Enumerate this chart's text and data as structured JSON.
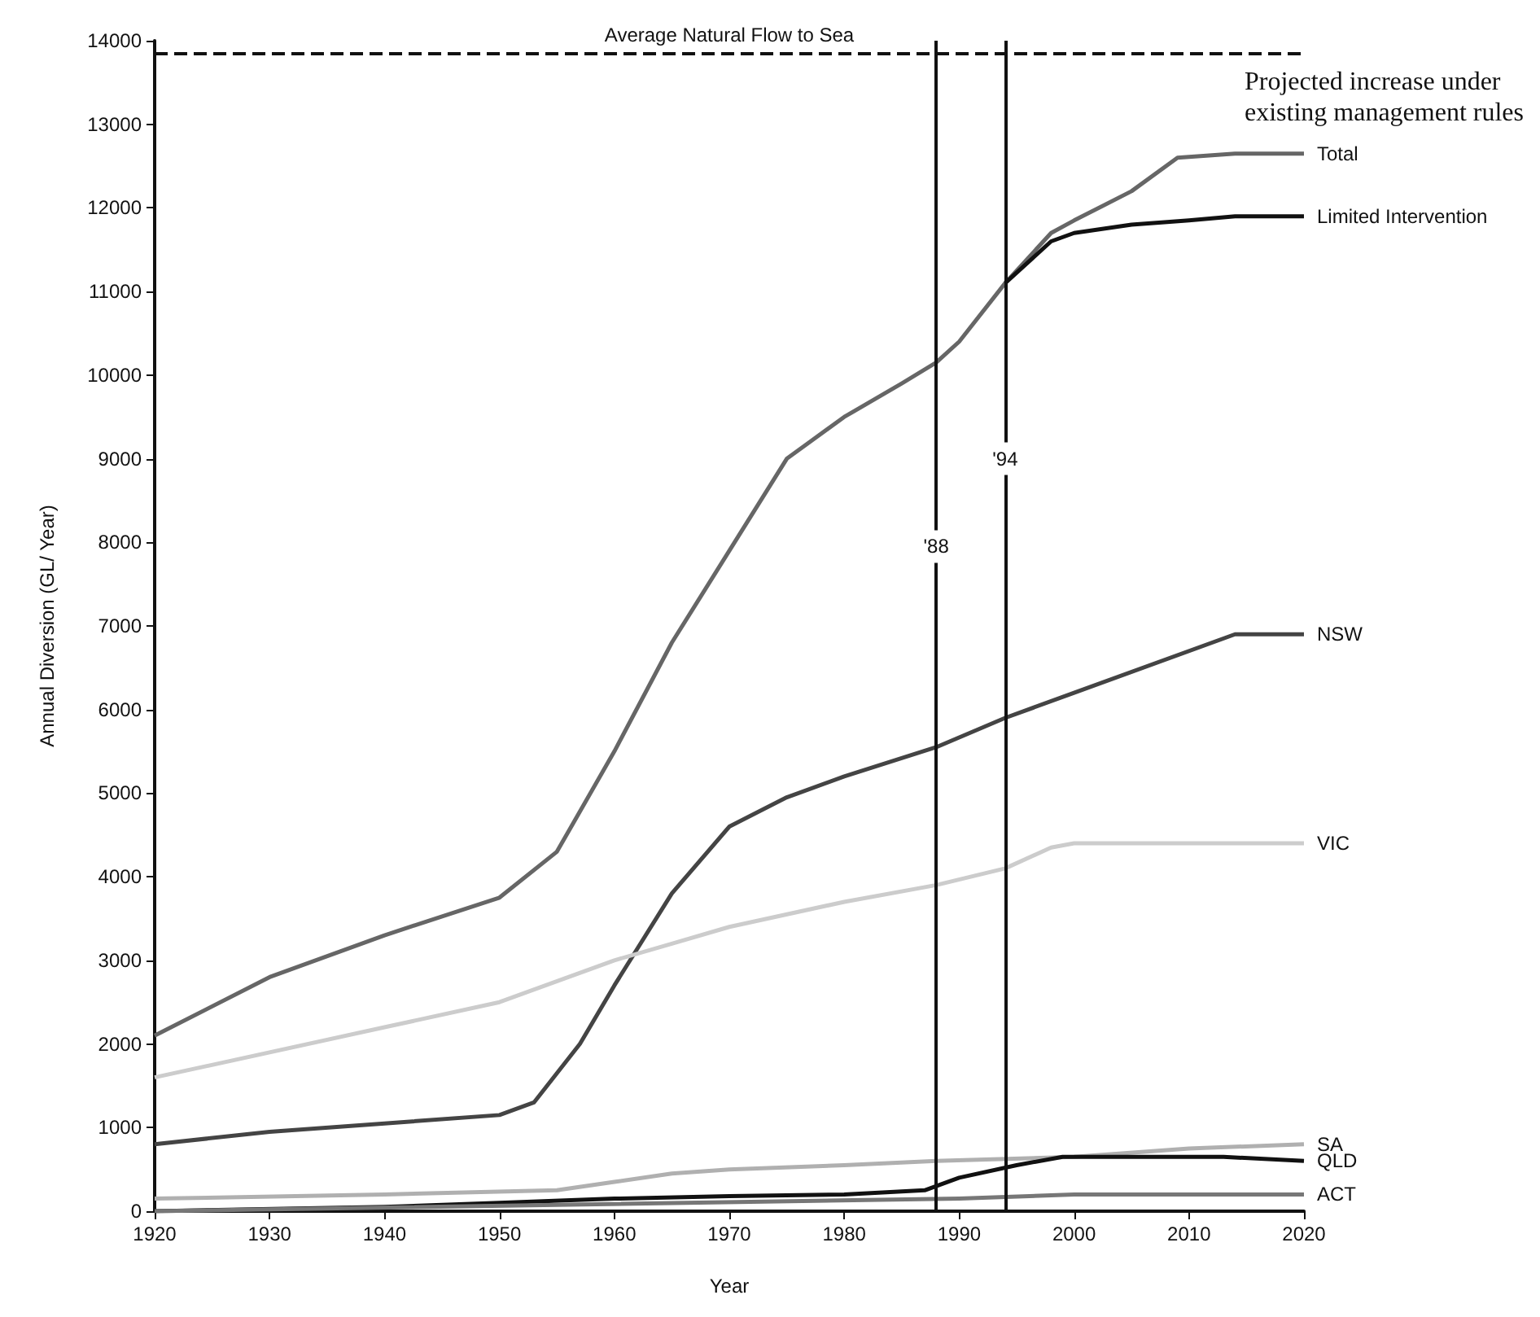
{
  "chart_data": {
    "type": "line",
    "xlabel": "Year",
    "ylabel": "Annual Diversion (GL/ Year)",
    "xlim": [
      1920,
      2020
    ],
    "xticks": [
      1920,
      1930,
      1940,
      1950,
      1960,
      1970,
      1980,
      1990,
      2000,
      2010,
      2020
    ],
    "ylim": [
      0,
      14000
    ],
    "yticks": [
      0,
      1000,
      2000,
      3000,
      4000,
      5000,
      6000,
      7000,
      8000,
      9000,
      10000,
      11000,
      12000,
      13000,
      14000
    ],
    "grid": false,
    "legend": false,
    "marker": "none",
    "series": [
      {
        "name": "Total",
        "color": "#666666",
        "x": [
          1920,
          1930,
          1940,
          1950,
          1955,
          1960,
          1965,
          1970,
          1975,
          1977,
          1980,
          1985,
          1988,
          1990,
          1994,
          1998,
          2000,
          2005,
          2009,
          2014,
          2020
        ],
        "values": [
          2100,
          2800,
          3300,
          3750,
          4300,
          5500,
          6800,
          7900,
          9000,
          9200,
          9500,
          9900,
          10150,
          10400,
          11100,
          11700,
          11850,
          12200,
          12600,
          12650,
          12650
        ]
      },
      {
        "name": "Limited Intervention",
        "color": "#111111",
        "x": [
          1994,
          1998,
          2000,
          2005,
          2010,
          2014,
          2020
        ],
        "values": [
          11100,
          11600,
          11700,
          11800,
          11850,
          11900,
          11900
        ]
      },
      {
        "name": "NSW",
        "color": "#444444",
        "x": [
          1920,
          1930,
          1940,
          1950,
          1953,
          1957,
          1960,
          1965,
          1970,
          1975,
          1980,
          1988,
          1994,
          2000,
          2014,
          2020
        ],
        "values": [
          800,
          950,
          1050,
          1150,
          1300,
          2000,
          2700,
          3800,
          4600,
          4950,
          5200,
          5550,
          5900,
          6200,
          6900,
          6900
        ]
      },
      {
        "name": "VIC",
        "color": "#cccccc",
        "x": [
          1920,
          1940,
          1950,
          1960,
          1965,
          1970,
          1980,
          1988,
          1994,
          1998,
          2000,
          2020
        ],
        "values": [
          1600,
          2200,
          2500,
          3000,
          3200,
          3400,
          3700,
          3900,
          4100,
          4350,
          4400,
          4400
        ]
      },
      {
        "name": "SA",
        "color": "#b0b0b0",
        "x": [
          1920,
          1940,
          1955,
          1960,
          1965,
          1970,
          1980,
          1988,
          2000,
          2010,
          2020
        ],
        "values": [
          150,
          200,
          250,
          350,
          450,
          500,
          550,
          600,
          650,
          750,
          800
        ]
      },
      {
        "name": "QLD",
        "color": "#111111",
        "x": [
          1920,
          1940,
          1950,
          1960,
          1970,
          1980,
          1987,
          1990,
          1995,
          1999,
          2013,
          2020
        ],
        "values": [
          0,
          50,
          100,
          150,
          180,
          200,
          250,
          400,
          550,
          650,
          650,
          600
        ]
      },
      {
        "name": "ACT",
        "color": "#777777",
        "x": [
          1920,
          1990,
          2000,
          2020
        ],
        "values": [
          0,
          150,
          200,
          200
        ]
      }
    ],
    "ref_lines": [
      {
        "axis": "y",
        "value": 13850,
        "label": "Average Natural Flow to Sea",
        "line_style": "dashed",
        "color": "#111111"
      },
      {
        "axis": "x",
        "value": 1988,
        "color": "#111111"
      },
      {
        "axis": "x",
        "value": 1994,
        "color": "#111111"
      }
    ],
    "annotations": [
      "Projected increase under existing management rules",
      {
        "text": "'88",
        "x": 1988,
        "y": 7950
      },
      {
        "text": "'94",
        "x": 1994,
        "y": 9000
      }
    ]
  }
}
